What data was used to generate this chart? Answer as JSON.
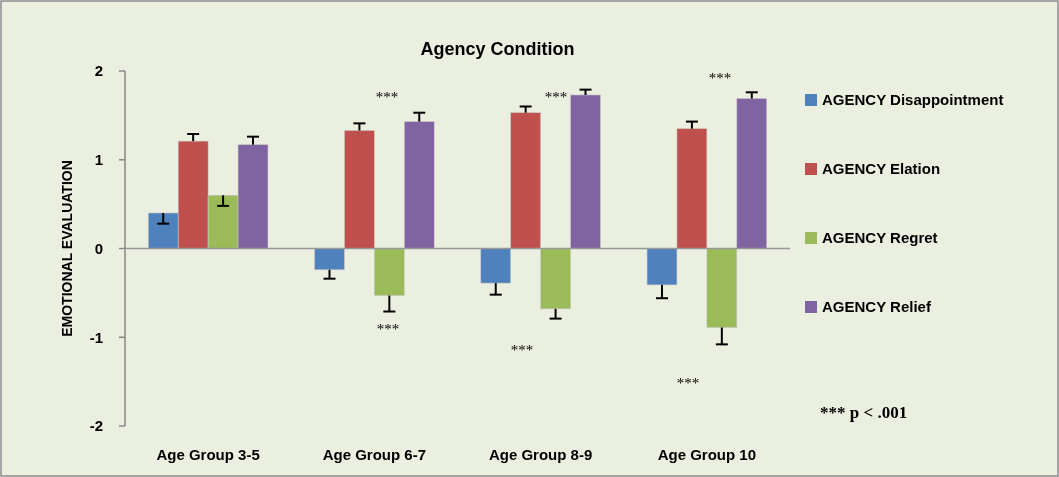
{
  "chart_data": {
    "type": "bar",
    "title": "Agency Condition",
    "ylabel": "EMOTIONAL EVALUATION",
    "categories": [
      "Age Group 3-5",
      "Age Group 6-7",
      "Age Group 8-9",
      "Age Group 10"
    ],
    "series": [
      {
        "name": "AGENCY Disappointment",
        "color": "#4f81bd",
        "values": [
          0.4,
          -0.24,
          -0.39,
          -0.41
        ],
        "errors": [
          [
            0.28,
            0.4
          ],
          [
            -0.34,
            -0.24
          ],
          [
            -0.52,
            -0.39
          ],
          [
            -0.56,
            -0.41
          ]
        ]
      },
      {
        "name": "AGENCY Elation",
        "color": "#c0504d",
        "values": [
          1.21,
          1.33,
          1.53,
          1.35
        ],
        "errors": [
          [
            1.21,
            1.29
          ],
          [
            1.33,
            1.41
          ],
          [
            1.53,
            1.6
          ],
          [
            1.35,
            1.43
          ]
        ]
      },
      {
        "name": "AGENCY Regret",
        "color": "#9bbb59",
        "values": [
          0.6,
          -0.53,
          -0.68,
          -0.89
        ],
        "errors": [
          [
            0.48,
            0.6
          ],
          [
            -0.71,
            -0.53
          ],
          [
            -0.79,
            -0.68
          ],
          [
            -1.08,
            -0.89
          ]
        ]
      },
      {
        "name": "AGENCY Relief",
        "color": "#8064a2",
        "values": [
          1.17,
          1.43,
          1.73,
          1.69
        ],
        "errors": [
          [
            1.17,
            1.26
          ],
          [
            1.43,
            1.53
          ],
          [
            1.73,
            1.79
          ],
          [
            1.69,
            1.76
          ]
        ]
      }
    ],
    "ylim": [
      -2,
      2
    ],
    "yticks": [
      -2,
      -1,
      0,
      1,
      2
    ],
    "legend": "right",
    "annotations": [
      "***",
      "***",
      "***",
      "***",
      "***",
      "***",
      "*** p < .001"
    ]
  }
}
